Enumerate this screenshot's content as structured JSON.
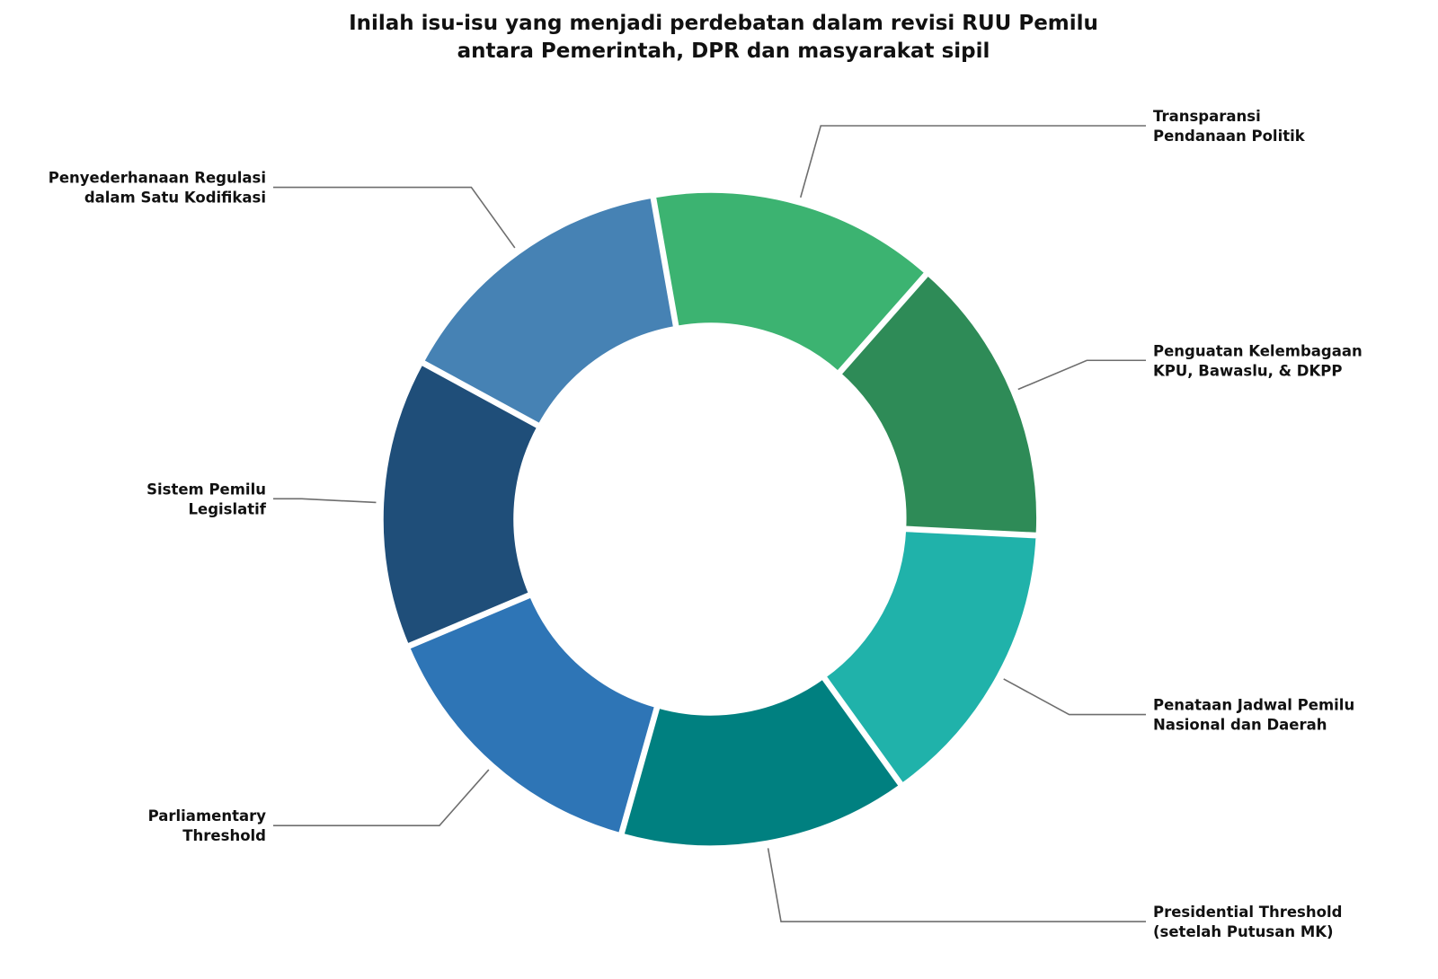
{
  "chart_data": {
    "type": "pie",
    "variant": "donut",
    "title_lines": [
      "Inilah isu-isu yang menjadi perdebatan dalam revisi RUU Pemilu",
      "antara Pemerintah, DPR dan masyarakat sipil"
    ],
    "start_angle_deg": 100,
    "direction": "counterclockwise",
    "slices": [
      {
        "label_lines": [
          "Penyederhanaan Regulasi",
          "dalam Satu Kodifikasi"
        ],
        "value": 1,
        "color": "#4682b4"
      },
      {
        "label_lines": [
          "Sistem Pemilu",
          "Legislatif"
        ],
        "value": 1,
        "color": "#1f4e79"
      },
      {
        "label_lines": [
          "Parliamentary",
          "Threshold"
        ],
        "value": 1,
        "color": "#2e75b6"
      },
      {
        "label_lines": [
          "Presidential Threshold",
          "(setelah Putusan MK)"
        ],
        "value": 1,
        "color": "#008080"
      },
      {
        "label_lines": [
          "Penataan Jadwal Pemilu",
          "Nasional dan Daerah"
        ],
        "value": 1,
        "color": "#20b2aa"
      },
      {
        "label_lines": [
          "Penguatan Kelembagaan",
          "KPU, Bawaslu, & DKPP"
        ],
        "value": 1,
        "color": "#2e8b57"
      },
      {
        "label_lines": [
          "Transparansi",
          "Pendanaan Politik"
        ],
        "value": 1,
        "color": "#3cb371"
      }
    ]
  }
}
